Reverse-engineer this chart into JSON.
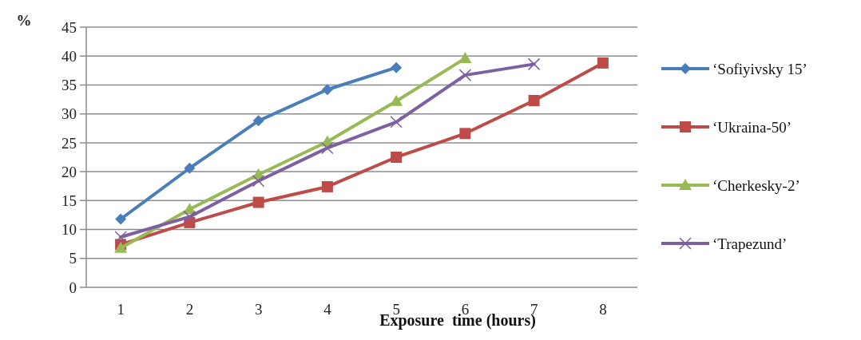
{
  "chart_data": {
    "type": "line",
    "xlabel": "Exposure  time (hours)",
    "ylabel": "%",
    "categories": [
      "1",
      "2",
      "3",
      "4",
      "5",
      "6",
      "7",
      "8"
    ],
    "series": [
      {
        "name": "‘Sofiyivsky 15’",
        "color": "#4a7ebb",
        "marker": "diamond",
        "values": [
          11.8,
          20.6,
          28.8,
          34.2,
          38.0,
          null,
          null,
          null
        ]
      },
      {
        "name": "‘Ukraina-50’",
        "color": "#be4b48",
        "marker": "square",
        "values": [
          7.4,
          11.2,
          14.7,
          17.4,
          22.5,
          26.6,
          32.3,
          38.8
        ]
      },
      {
        "name": "‘Cherkesky-2’",
        "color": "#98b954",
        "marker": "triangle",
        "values": [
          6.8,
          13.5,
          19.5,
          25.2,
          32.2,
          39.6,
          null,
          null
        ]
      },
      {
        "name": "‘Trapezund’",
        "color": "#7d60a0",
        "marker": "cross",
        "values": [
          8.7,
          12.2,
          18.4,
          24.1,
          28.6,
          36.7,
          38.6,
          null
        ]
      }
    ],
    "ylim": [
      0,
      45
    ],
    "yticks": [
      0,
      5,
      10,
      15,
      20,
      25,
      30,
      35,
      40,
      45
    ],
    "grid": "y",
    "legend": "right"
  }
}
